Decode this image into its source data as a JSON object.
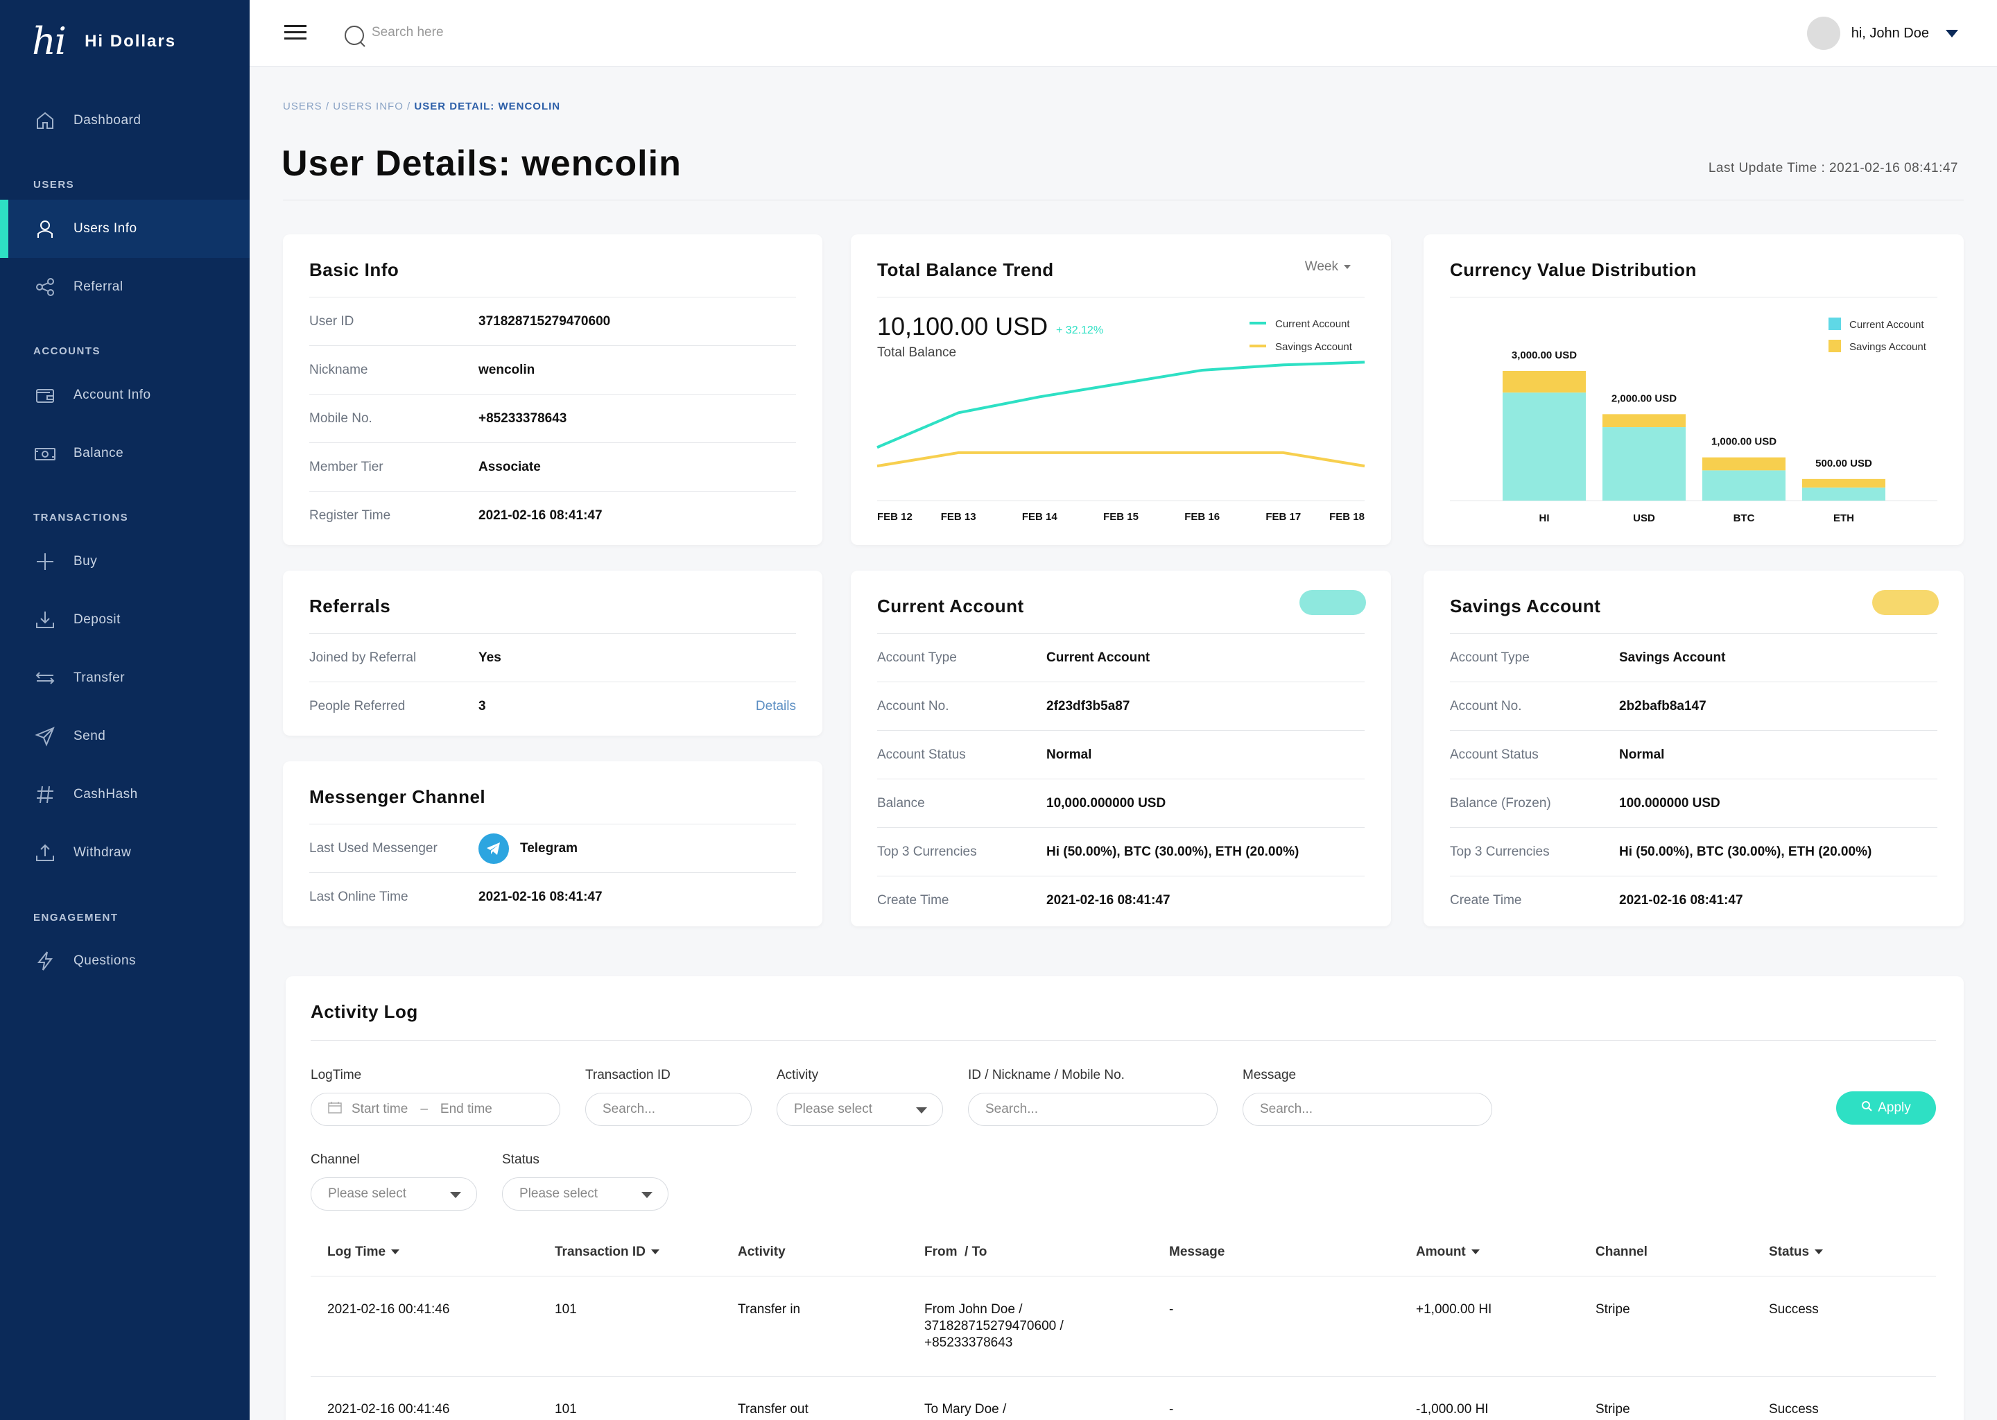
{
  "app": {
    "logo_mark": "hi",
    "name": "Hi Dollars"
  },
  "sidebar": {
    "items": [
      {
        "label": "Dashboard",
        "icon": "home-icon"
      },
      {
        "section": "USERS"
      },
      {
        "label": "Users Info",
        "icon": "user-icon",
        "active": true
      },
      {
        "label": "Referral",
        "icon": "share-icon"
      },
      {
        "section": "ACCOUNTS"
      },
      {
        "label": "Account Info",
        "icon": "wallet-icon"
      },
      {
        "label": "Balance",
        "icon": "cash-icon"
      },
      {
        "section": "TRANSACTIONS"
      },
      {
        "label": "Buy",
        "icon": "plus-icon"
      },
      {
        "label": "Deposit",
        "icon": "download-icon"
      },
      {
        "label": "Transfer",
        "icon": "arrows-icon"
      },
      {
        "label": "Send",
        "icon": "send-icon"
      },
      {
        "label": "CashHash",
        "icon": "hash-icon"
      },
      {
        "label": "Withdraw",
        "icon": "upload-icon"
      },
      {
        "section": "ENGAGEMENT"
      },
      {
        "label": "Questions",
        "icon": "lightning-icon"
      }
    ]
  },
  "topbar": {
    "search_placeholder": "Search here",
    "user_greeting": "hi, John Doe"
  },
  "header": {
    "breadcrumb": [
      "USERS",
      "USERS INFO",
      "USER DETAIL: WENCOLIN"
    ],
    "title": "User Details: wencolin",
    "last_update": "Last Update Time : 2021-02-16 08:41:47"
  },
  "basic_info": {
    "title": "Basic Info",
    "rows": [
      {
        "k": "User ID",
        "v": "371828715279470600"
      },
      {
        "k": "Nickname",
        "v": "wencolin"
      },
      {
        "k": "Mobile No.",
        "v": "+85233378643"
      },
      {
        "k": "Member Tier",
        "v": "Associate"
      },
      {
        "k": "Register Time",
        "v": "2021-02-16 08:41:47"
      }
    ]
  },
  "referrals": {
    "title": "Referrals",
    "rows": [
      {
        "k": "Joined by Referral",
        "v": "Yes"
      },
      {
        "k": "People Referred",
        "v": "3"
      }
    ],
    "details_link": "Details"
  },
  "messenger": {
    "title": "Messenger Channel",
    "rows": [
      {
        "k": "Last Used Messenger",
        "v": "Telegram"
      },
      {
        "k": "Last Online Time",
        "v": "2021-02-16 08:41:47"
      }
    ]
  },
  "balance_trend": {
    "title": "Total Balance Trend",
    "period": "Week",
    "total": "10,100.00 USD",
    "change": "+ 32.12%",
    "total_label": "Total Balance"
  },
  "currency_dist": {
    "title": "Currency Value Distribution"
  },
  "current_account": {
    "title": "Current Account",
    "rows": [
      {
        "k": "Account Type",
        "v": "Current Account"
      },
      {
        "k": "Account No.",
        "v": "2f23df3b5a87"
      },
      {
        "k": "Account Status",
        "v": "Normal"
      },
      {
        "k": "Balance",
        "v": "10,000.000000 USD"
      },
      {
        "k": "Top 3 Currencies",
        "v": "Hi (50.00%), BTC (30.00%), ETH (20.00%)"
      },
      {
        "k": "Create Time",
        "v": "2021-02-16 08:41:47"
      }
    ]
  },
  "savings_account": {
    "title": "Savings Account",
    "rows": [
      {
        "k": "Account Type",
        "v": "Savings Account"
      },
      {
        "k": "Account No.",
        "v": "2b2bafb8a147"
      },
      {
        "k": "Account Status",
        "v": "Normal"
      },
      {
        "k": "Balance (Frozen)",
        "v": "100.000000 USD"
      },
      {
        "k": "Top 3 Currencies",
        "v": "Hi (50.00%), BTC (30.00%), ETH (20.00%)"
      },
      {
        "k": "Create Time",
        "v": "2021-02-16 08:41:47"
      }
    ]
  },
  "activity": {
    "title": "Activity Log",
    "filters": {
      "logtime": "LogTime",
      "start": "Start time",
      "sep": "–",
      "end": "End time",
      "txid": "Transaction ID",
      "txid_ph": "Search...",
      "activity": "Activity",
      "activity_ph": "Please select",
      "idnick": "ID / Nickname / Mobile No.",
      "idnick_ph": "Search...",
      "message": "Message",
      "message_ph": "Search...",
      "channel": "Channel",
      "channel_ph": "Please select",
      "status": "Status",
      "status_ph": "Please select",
      "apply": "Apply"
    },
    "columns": [
      "Log Time",
      "Transaction ID",
      "Activity",
      "From  / To",
      "Message",
      "Amount",
      "Channel",
      "Status"
    ],
    "rows": [
      {
        "time": "2021-02-16 00:41:46",
        "txid": "101",
        "activity": "Transfer in",
        "from1": "From John Doe /",
        "from2": "371828715279470600 /",
        "from3": "+85233378643",
        "message": "-",
        "amount": "+1,000.00 HI",
        "channel": "Stripe",
        "status": "Success"
      },
      {
        "time": "2021-02-16 00:41:46",
        "txid": "101",
        "activity": "Transfer out",
        "from1": "To Mary Doe /",
        "message": "-",
        "amount": "-1,000.00 HI",
        "channel": "Stripe",
        "status": "Success"
      }
    ]
  },
  "colors": {
    "sidebar": "#0b2a59",
    "accent": "#2ee0c4",
    "savings": "#f7cf4e",
    "link": "#5b8ec2"
  },
  "chart_data": [
    {
      "type": "line",
      "title": "Total Balance Trend",
      "categories": [
        "FEB 12",
        "FEB 13",
        "FEB 14",
        "FEB 15",
        "FEB 16",
        "FEB 17",
        "FEB 18"
      ],
      "series": [
        {
          "name": "Current Account",
          "color": "#2ee0c4",
          "values": [
            0.2,
            0.33,
            0.39,
            0.44,
            0.49,
            0.51,
            0.52
          ]
        },
        {
          "name": "Savings Account",
          "color": "#f7cf4e",
          "values": [
            0.13,
            0.18,
            0.18,
            0.18,
            0.18,
            0.18,
            0.13
          ]
        }
      ],
      "ylim": [
        0,
        1
      ],
      "legend": "top-right",
      "grid": false
    },
    {
      "type": "bar",
      "title": "Currency Value Distribution",
      "categories": [
        "HI",
        "USD",
        "BTC",
        "ETH"
      ],
      "totals": [
        3000,
        2000,
        1000,
        500
      ],
      "data_labels": [
        "3,000.00 USD",
        "2,000.00 USD",
        "1,000.00 USD",
        "500.00 USD"
      ],
      "series": [
        {
          "name": "Current Account",
          "color": "#7fe6da",
          "values": [
            2500,
            1700,
            700,
            300
          ]
        },
        {
          "name": "Savings Account",
          "color": "#f7cf4e",
          "values": [
            500,
            300,
            300,
            200
          ]
        }
      ],
      "stacked": true,
      "ylim": [
        0,
        3500
      ],
      "legend": "top-right",
      "grid": false
    }
  ]
}
